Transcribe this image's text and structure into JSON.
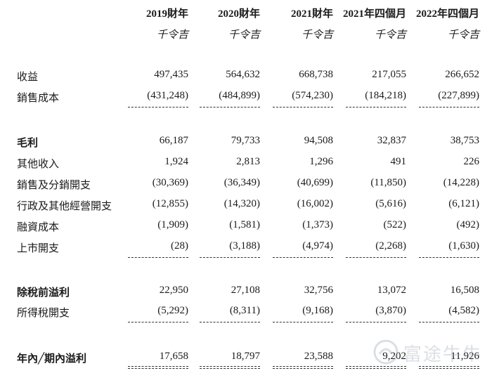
{
  "headers": [
    "2019財年",
    "2020財年",
    "2021財年",
    "2021年四個月",
    "2022年四個月"
  ],
  "units": [
    "千令吉",
    "千令吉",
    "千令吉",
    "千令吉",
    "千令吉"
  ],
  "rows": [
    {
      "label": "收益",
      "values": [
        "497,435",
        "564,632",
        "668,738",
        "217,055",
        "266,652"
      ]
    },
    {
      "label": "銷售成本",
      "values": [
        "(431,248)",
        "(484,899)",
        "(574,230)",
        "(184,218)",
        "(227,899)"
      ]
    },
    {
      "label": "毛利",
      "values": [
        "66,187",
        "79,733",
        "94,508",
        "32,837",
        "38,753"
      ]
    },
    {
      "label": "其他收入",
      "values": [
        "1,924",
        "2,813",
        "1,296",
        "491",
        "226"
      ]
    },
    {
      "label": "銷售及分銷開支",
      "values": [
        "(30,369)",
        "(36,349)",
        "(40,699)",
        "(11,850)",
        "(14,228)"
      ]
    },
    {
      "label": "行政及其他經營開支",
      "values": [
        "(12,855)",
        "(14,320)",
        "(16,002)",
        "(5,616)",
        "(6,121)"
      ]
    },
    {
      "label": "融資成本",
      "values": [
        "(1,909)",
        "(1,581)",
        "(1,373)",
        "(522)",
        "(492)"
      ]
    },
    {
      "label": "上市開支",
      "values": [
        "(28)",
        "(3,188)",
        "(4,974)",
        "(2,268)",
        "(1,630)"
      ]
    },
    {
      "label": "除稅前溢利",
      "values": [
        "22,950",
        "27,108",
        "32,756",
        "13,072",
        "16,508"
      ]
    },
    {
      "label": "所得稅開支",
      "values": [
        "(5,292)",
        "(8,311)",
        "(9,168)",
        "(3,870)",
        "(4,582)"
      ]
    },
    {
      "label": "年內╱期內溢利",
      "values": [
        "17,658",
        "18,797",
        "23,588",
        "9,202",
        "11,926"
      ]
    }
  ],
  "watermark": {
    "text": "富途牛牛",
    "icon": "futu-logo-icon"
  }
}
